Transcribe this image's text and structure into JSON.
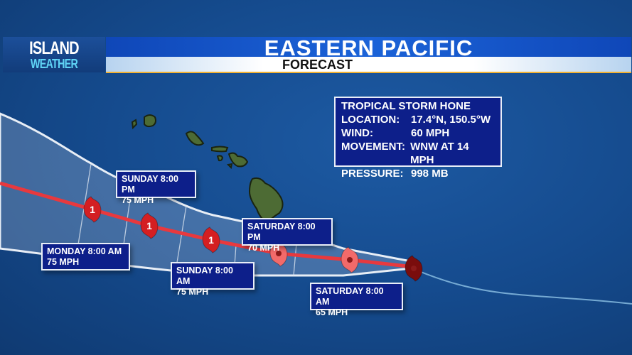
{
  "header": {
    "logo_line1": "ISLAND",
    "logo_line2": "WEATHER",
    "title": "EASTERN PACIFIC",
    "subtitle": "FORECAST"
  },
  "storm_info": {
    "name": "TROPICAL STORM HONE",
    "rows": [
      {
        "label": "LOCATION:",
        "value": "17.4°N, 150.5°W"
      },
      {
        "label": "WIND:",
        "value": "60 MPH"
      },
      {
        "label": "MOVEMENT:",
        "value": "WNW AT 14 MPH"
      },
      {
        "label": "PRESSURE:",
        "value": "998 MB"
      }
    ]
  },
  "forecast_points": [
    {
      "time": "SATURDAY 8:00 AM",
      "wind": "65 MPH",
      "category": "tropical-storm"
    },
    {
      "time": "SATURDAY 8:00 PM",
      "wind": "70 MPH",
      "category": "tropical-storm"
    },
    {
      "time": "SUNDAY 8:00 AM",
      "wind": "75 MPH",
      "category": "1"
    },
    {
      "time": "SUNDAY 8:00 PM",
      "wind": "75 MPH",
      "category": "1"
    },
    {
      "time": "MONDAY 8:00 AM",
      "wind": "75 MPH",
      "category": "1"
    }
  ],
  "colors": {
    "ocean": "#154b8e",
    "track": "#e8393e",
    "hurricane_icon": "#d41f22",
    "storm_icon": "#f26a6a",
    "current_icon": "#7a0d0d",
    "label_bg": "#0d1f8a"
  }
}
